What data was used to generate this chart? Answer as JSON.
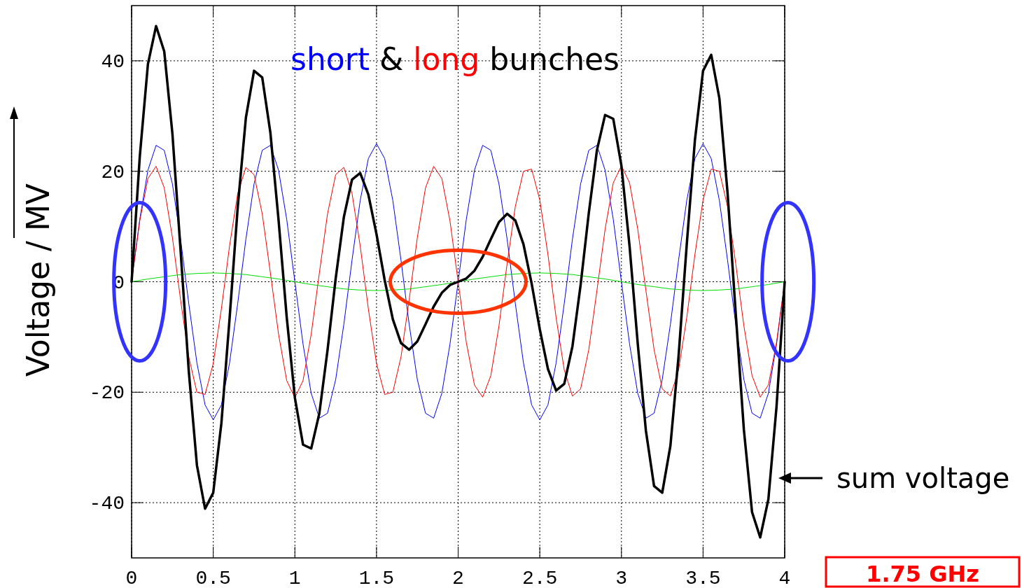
{
  "chart_data": {
    "type": "line",
    "ylabel": "Voltage / MV",
    "xlim": [
      0,
      4
    ],
    "ylim": [
      -50,
      50
    ],
    "xticks": [
      0,
      0.5,
      1,
      1.5,
      2,
      2.5,
      3,
      3.5,
      4
    ],
    "yticks": [
      -40,
      -20,
      0,
      20,
      40
    ],
    "grid": true,
    "marker": "none",
    "line_style": "solid",
    "x": [
      0,
      0.05,
      0.1,
      0.15,
      0.2,
      0.25,
      0.3,
      0.35,
      0.4,
      0.45,
      0.5,
      0.55,
      0.6,
      0.65,
      0.7,
      0.75,
      0.8,
      0.85,
      0.9,
      0.95,
      1,
      1.05,
      1.1,
      1.15,
      1.2,
      1.25,
      1.3,
      1.35,
      1.4,
      1.45,
      1.5,
      1.55,
      1.6,
      1.65,
      1.7,
      1.75,
      1.8,
      1.85,
      1.9,
      1.95,
      2,
      2.05,
      2.1,
      2.15,
      2.2,
      2.25,
      2.3,
      2.35,
      2.4,
      2.45,
      2.5,
      2.55,
      2.6,
      2.65,
      2.7,
      2.75,
      2.8,
      2.85,
      2.9,
      2.95,
      3,
      3.05,
      3.1,
      3.15,
      3.2,
      3.25,
      3.3,
      3.35,
      3.4,
      3.45,
      3.5,
      3.55,
      3.6,
      3.65,
      3.7,
      3.75,
      3.8,
      3.85,
      3.9,
      3.95,
      4
    ],
    "series": [
      {
        "color": "#0000ff",
        "values": [
          0,
          11.3,
          20.2,
          24.7,
          23.8,
          17.7,
          7.7,
          -3.9,
          -14.7,
          -22.3,
          -25,
          -22.3,
          -14.7,
          -3.9,
          7.7,
          17.7,
          23.8,
          24.7,
          20.2,
          11.3,
          0,
          -11.3,
          -20.2,
          -24.7,
          -23.8,
          -17.7,
          -7.7,
          3.9,
          14.7,
          22.3,
          25,
          22.3,
          14.7,
          3.9,
          -7.7,
          -17.7,
          -23.8,
          -24.7,
          -20.2,
          -11.3,
          0,
          11.3,
          20.2,
          24.7,
          23.8,
          17.7,
          7.7,
          -3.9,
          -14.7,
          -22.3,
          -25,
          -22.3,
          -14.7,
          -3.9,
          7.7,
          17.7,
          23.8,
          24.7,
          20.2,
          11.3,
          0,
          -11.3,
          -20.2,
          -24.7,
          -23.8,
          -17.7,
          -7.7,
          3.9,
          14.7,
          22.3,
          25,
          22.3,
          14.7,
          3.9,
          -7.7,
          -17.7,
          -23.8,
          -24.7,
          -20.2,
          -11.3,
          0
        ]
      },
      {
        "color": "#ff0000",
        "values": [
          0,
          11,
          18.7,
          20.9,
          17,
          8,
          -3.3,
          -13.6,
          -20,
          -20.4,
          -14.8,
          -4.9,
          6.5,
          16,
          20.7,
          19.4,
          12.3,
          1.6,
          -9.5,
          -17.9,
          -21,
          -17.9,
          -9.5,
          1.6,
          12.3,
          19.4,
          20.7,
          16,
          6.5,
          -4.9,
          -14.8,
          -20.4,
          -20,
          -13.6,
          -3.3,
          8,
          17,
          20.9,
          18.7,
          11,
          0,
          -11,
          -18.7,
          -20.9,
          -17,
          -8,
          3.3,
          13.6,
          20,
          20.4,
          14.8,
          4.9,
          -6.5,
          -16,
          -20.7,
          -19.4,
          -12.3,
          -1.6,
          9.5,
          17.9,
          21,
          17.9,
          9.5,
          -1.6,
          -12.3,
          -19.4,
          -20.7,
          -16,
          -6.5,
          4.9,
          14.8,
          20.4,
          20,
          13.6,
          3.3,
          -8,
          -17,
          -20.9,
          -18.7,
          -11,
          0
        ]
      },
      {
        "color": "#00dd00",
        "x": [
          0,
          0.1,
          0.2,
          0.3,
          0.4,
          0.5,
          0.6,
          0.7,
          0.8,
          0.9,
          1,
          1.1,
          1.2,
          1.3,
          1.4,
          1.5,
          1.6,
          1.7,
          1.8,
          1.9,
          2,
          2.1,
          2.2,
          2.3,
          2.4,
          2.5,
          2.6,
          2.7,
          2.8,
          2.9,
          3,
          3.1,
          3.2,
          3.3,
          3.4,
          3.5,
          3.6,
          3.7,
          3.8,
          3.9,
          4
        ],
        "values": [
          0,
          0.5,
          0.9,
          1.3,
          1.5,
          1.6,
          1.5,
          1.3,
          0.9,
          0.5,
          0,
          -0.5,
          -0.9,
          -1.3,
          -1.5,
          -1.6,
          -1.5,
          -1.3,
          -0.9,
          -0.5,
          0,
          0.5,
          0.9,
          1.3,
          1.5,
          1.6,
          1.5,
          1.3,
          0.9,
          0.5,
          0,
          -0.5,
          -0.9,
          -1.3,
          -1.5,
          -1.6,
          -1.5,
          -1.3,
          -0.9,
          -0.5,
          0
        ]
      },
      {
        "color": "#000000",
        "values": [
          0,
          22.6,
          39.4,
          46.3,
          41.7,
          26.8,
          5.7,
          -16.1,
          -33.2,
          -41.1,
          -38.2,
          -25.6,
          -6.7,
          13.5,
          29.7,
          38.2,
          37,
          27,
          11.2,
          -6.4,
          -21,
          -29.5,
          -30.2,
          -23.8,
          -12.4,
          0.6,
          11.7,
          18.5,
          19.7,
          15.8,
          8.6,
          0.3,
          -6.8,
          -11.1,
          -12.3,
          -10.8,
          -7.7,
          -4.5,
          -2,
          -0.6,
          0,
          0.6,
          2,
          4.5,
          7.7,
          10.8,
          12.3,
          11.1,
          6.8,
          -0.3,
          -8.6,
          -15.8,
          -19.7,
          -18.5,
          -11.7,
          -0.6,
          12.4,
          23.8,
          30.2,
          29.5,
          21,
          6.4,
          -11.2,
          -27,
          -37,
          -38.2,
          -29.7,
          -13.5,
          6.7,
          25.6,
          38.2,
          41.1,
          33.2,
          16.1,
          -5.7,
          -26.8,
          -41.7,
          -46.3,
          -39.4,
          -22.6,
          0
        ]
      }
    ],
    "annotations": [
      "short & long bunches",
      "sum voltage",
      "1.75 GHz"
    ]
  }
}
